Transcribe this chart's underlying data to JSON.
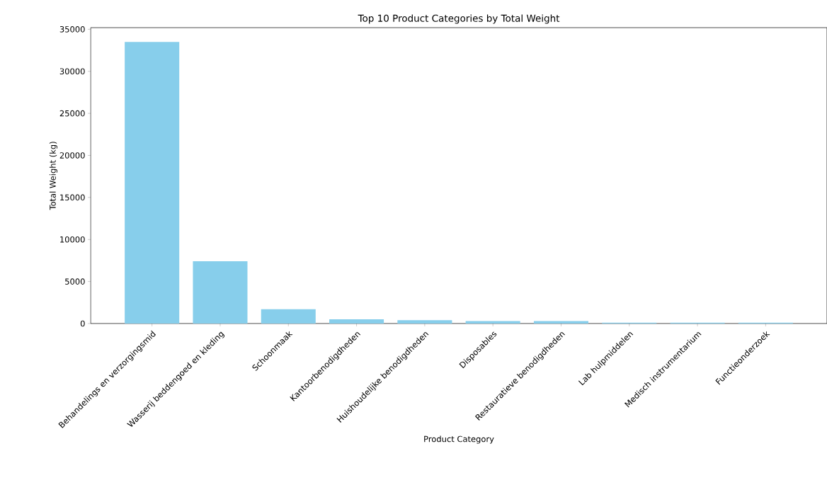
{
  "chart_data": {
    "type": "bar",
    "title": "Top 10 Product Categories by Total Weight",
    "xlabel": "Product Category",
    "ylabel": "Total Weight (kg)",
    "categories": [
      "Behandelings en verzorgingsmid",
      "Wasserij beddengoed en kleding",
      "Schoonmaak",
      "Kantoorbenodigdheden",
      "Huishoudelijke benodigdheden",
      "Disposables",
      "Restauratieve benodigdheden",
      "Lab hulpmiddelen",
      "Medisch instrumentarium",
      "Functieonderzoek"
    ],
    "values": [
      33500,
      7400,
      1700,
      500,
      400,
      300,
      300,
      100,
      100,
      100
    ],
    "color": "#87ceeb",
    "ylim": [
      0,
      35200
    ],
    "yticks": [
      0,
      5000,
      10000,
      15000,
      20000,
      25000,
      30000,
      35000
    ],
    "grid": false
  }
}
